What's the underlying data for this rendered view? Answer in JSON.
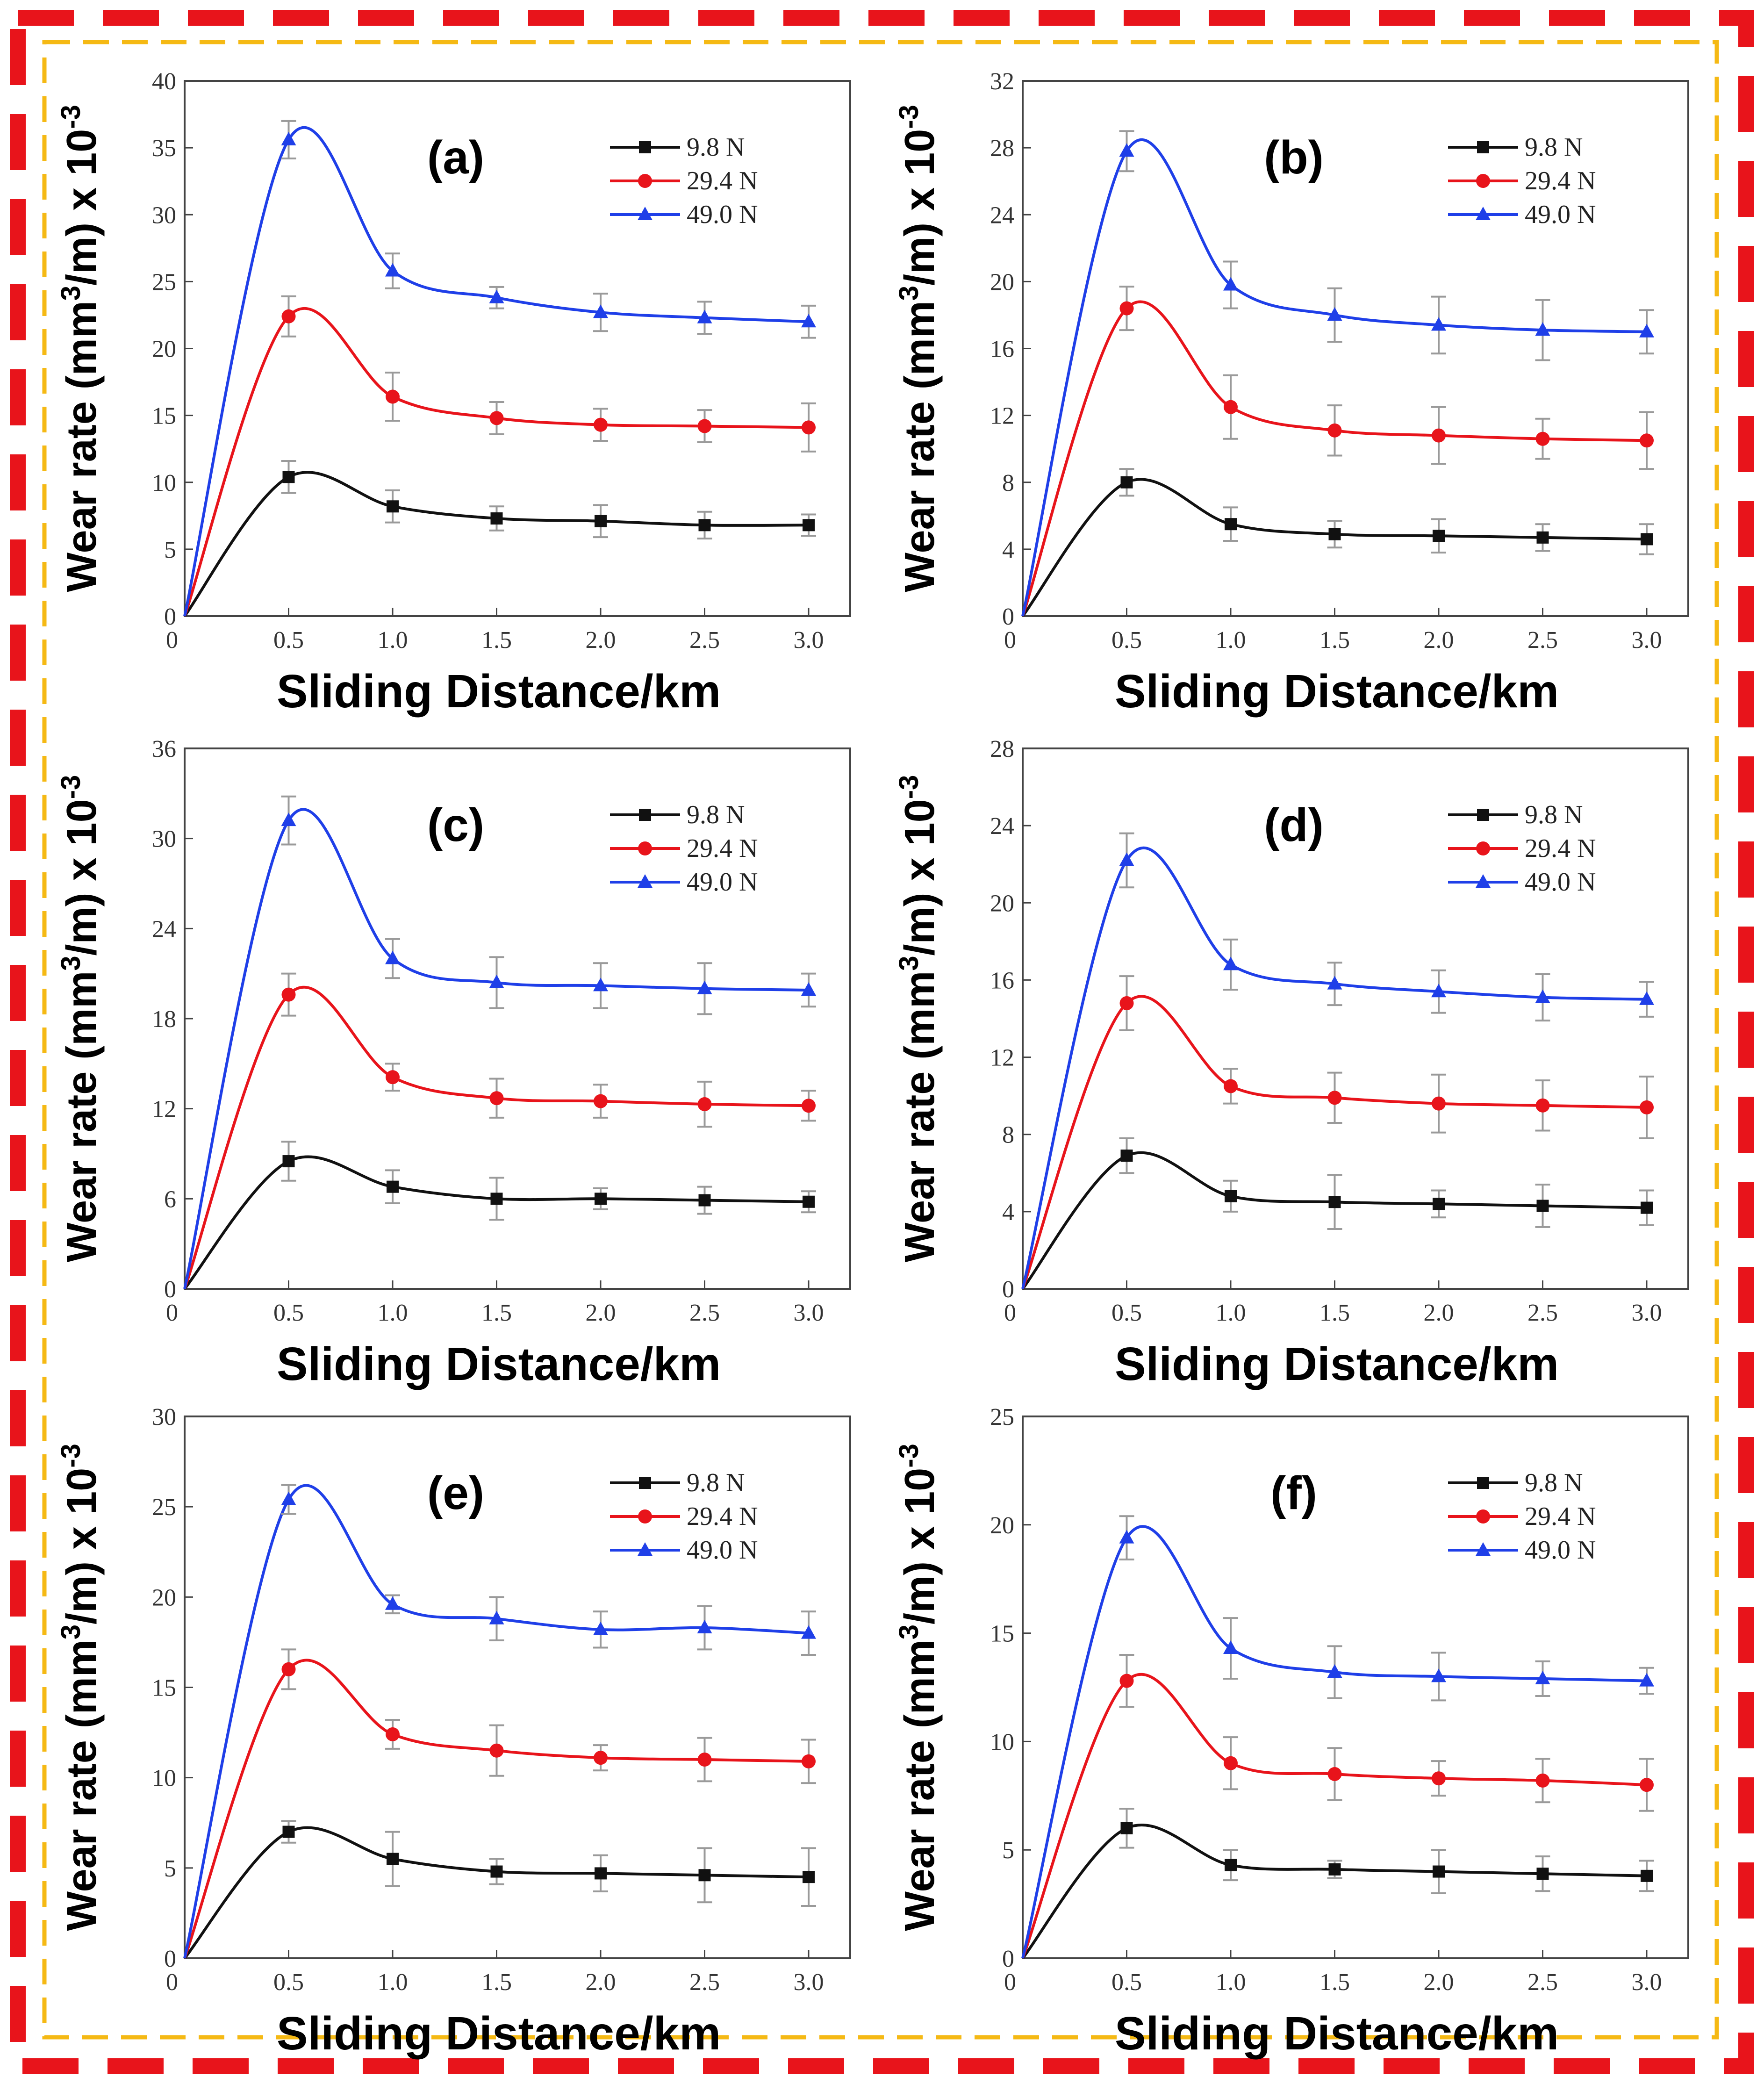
{
  "figure": {
    "colors": {
      "outer_border": "#e8141b",
      "inner_border": "#f5b914",
      "series": [
        "#111111",
        "#e8141b",
        "#1f3fe8"
      ]
    }
  },
  "chart_data": [
    {
      "type": "line",
      "panel": "(a)",
      "xlabel": "Sliding Distance/km",
      "ylabel": "Wear rate (mm3/m) x 10-3",
      "xlim": [
        0,
        3.2
      ],
      "ylim": [
        0,
        40
      ],
      "x_ticks": [
        0,
        0.5,
        1.0,
        1.5,
        2.0,
        2.5,
        3.0
      ],
      "x_tick_labels": [
        "0",
        "0.5",
        "1.0",
        "1.5",
        "2.0",
        "2.5",
        "3.0"
      ],
      "y_ticks": [
        0,
        5,
        10,
        15,
        20,
        25,
        30,
        35,
        40
      ],
      "y_tick_labels": [
        "0",
        "5",
        "10",
        "15",
        "20",
        "25",
        "30",
        "35",
        "40"
      ],
      "x": [
        0.5,
        1.0,
        1.5,
        2.0,
        2.5,
        3.0
      ],
      "series": [
        {
          "name": "9.8 N",
          "color": "#111111",
          "marker": "square",
          "values": [
            10.4,
            8.2,
            7.3,
            7.1,
            6.8,
            6.8
          ],
          "errors": [
            1.2,
            1.2,
            0.9,
            1.2,
            1.0,
            0.8
          ]
        },
        {
          "name": "29.4 N",
          "color": "#e8141b",
          "marker": "circle",
          "values": [
            22.4,
            16.4,
            14.8,
            14.3,
            14.2,
            14.1
          ],
          "errors": [
            1.5,
            1.8,
            1.2,
            1.2,
            1.2,
            1.8
          ]
        },
        {
          "name": "49.0 N",
          "color": "#1f3fe8",
          "marker": "triangle",
          "values": [
            35.6,
            25.8,
            23.8,
            22.7,
            22.3,
            22.0
          ],
          "errors": [
            1.4,
            1.3,
            0.8,
            1.4,
            1.2,
            1.2
          ]
        }
      ]
    },
    {
      "type": "line",
      "panel": "(b)",
      "xlabel": "Sliding Distance/km",
      "ylabel": "Wear rate (mm3/m) x 10-3",
      "xlim": [
        0,
        3.2
      ],
      "ylim": [
        0,
        32
      ],
      "x_ticks": [
        0,
        0.5,
        1.0,
        1.5,
        2.0,
        2.5,
        3.0
      ],
      "x_tick_labels": [
        "0",
        "0.5",
        "1.0",
        "1.5",
        "2.0",
        "2.5",
        "3.0"
      ],
      "y_ticks": [
        0,
        4,
        8,
        12,
        16,
        20,
        24,
        28,
        32
      ],
      "y_tick_labels": [
        "0",
        "4",
        "8",
        "12",
        "16",
        "20",
        "24",
        "28",
        "32"
      ],
      "x": [
        0.5,
        1.0,
        1.5,
        2.0,
        2.5,
        3.0
      ],
      "series": [
        {
          "name": "9.8 N",
          "color": "#111111",
          "marker": "square",
          "values": [
            8.0,
            5.5,
            4.9,
            4.8,
            4.7,
            4.6
          ],
          "errors": [
            0.8,
            1.0,
            0.8,
            1.0,
            0.8,
            0.9
          ]
        },
        {
          "name": "29.4 N",
          "color": "#e8141b",
          "marker": "circle",
          "values": [
            18.4,
            12.5,
            11.1,
            10.8,
            10.6,
            10.5
          ],
          "errors": [
            1.3,
            1.9,
            1.5,
            1.7,
            1.2,
            1.7
          ]
        },
        {
          "name": "49.0 N",
          "color": "#1f3fe8",
          "marker": "triangle",
          "values": [
            27.8,
            19.8,
            18.0,
            17.4,
            17.1,
            17.0
          ],
          "errors": [
            1.2,
            1.4,
            1.6,
            1.7,
            1.8,
            1.3
          ]
        }
      ]
    },
    {
      "type": "line",
      "panel": "(c)",
      "xlabel": "Sliding Distance/km",
      "ylabel": "Wear rate (mm3/m) x 10-3",
      "xlim": [
        0,
        3.2
      ],
      "ylim": [
        0,
        36
      ],
      "x_ticks": [
        0,
        0.5,
        1.0,
        1.5,
        2.0,
        2.5,
        3.0
      ],
      "x_tick_labels": [
        "0",
        "0.5",
        "1.0",
        "1.5",
        "2.0",
        "2.5",
        "3.0"
      ],
      "y_ticks": [
        0,
        6,
        12,
        18,
        24,
        30,
        36
      ],
      "y_tick_labels": [
        "0",
        "6",
        "12",
        "18",
        "24",
        "30",
        "36"
      ],
      "x": [
        0.5,
        1.0,
        1.5,
        2.0,
        2.5,
        3.0
      ],
      "series": [
        {
          "name": "9.8 N",
          "color": "#111111",
          "marker": "square",
          "values": [
            8.5,
            6.8,
            6.0,
            6.0,
            5.9,
            5.8
          ],
          "errors": [
            1.3,
            1.1,
            1.4,
            0.7,
            0.9,
            0.7
          ]
        },
        {
          "name": "29.4 N",
          "color": "#e8141b",
          "marker": "circle",
          "values": [
            19.6,
            14.1,
            12.7,
            12.5,
            12.3,
            12.2
          ],
          "errors": [
            1.4,
            0.9,
            1.3,
            1.1,
            1.5,
            1.0
          ]
        },
        {
          "name": "49.0 N",
          "color": "#1f3fe8",
          "marker": "triangle",
          "values": [
            31.2,
            22.0,
            20.4,
            20.2,
            20.0,
            19.9
          ],
          "errors": [
            1.6,
            1.3,
            1.7,
            1.5,
            1.7,
            1.1
          ]
        }
      ]
    },
    {
      "type": "line",
      "panel": "(d)",
      "xlabel": "Sliding Distance/km",
      "ylabel": "Wear rate (mm3/m) x 10-3",
      "xlim": [
        0,
        3.2
      ],
      "ylim": [
        0,
        28
      ],
      "x_ticks": [
        0,
        0.5,
        1.0,
        1.5,
        2.0,
        2.5,
        3.0
      ],
      "x_tick_labels": [
        "0",
        "0.5",
        "1.0",
        "1.5",
        "2.0",
        "2.5",
        "3.0"
      ],
      "y_ticks": [
        0,
        4,
        8,
        12,
        16,
        20,
        24,
        28
      ],
      "y_tick_labels": [
        "0",
        "4",
        "8",
        "12",
        "16",
        "20",
        "24",
        "28"
      ],
      "x": [
        0.5,
        1.0,
        1.5,
        2.0,
        2.5,
        3.0
      ],
      "series": [
        {
          "name": "9.8 N",
          "color": "#111111",
          "marker": "square",
          "values": [
            6.9,
            4.8,
            4.5,
            4.4,
            4.3,
            4.2
          ],
          "errors": [
            0.9,
            0.8,
            1.4,
            0.7,
            1.1,
            0.9
          ]
        },
        {
          "name": "29.4 N",
          "color": "#e8141b",
          "marker": "circle",
          "values": [
            14.8,
            10.5,
            9.9,
            9.6,
            9.5,
            9.4
          ],
          "errors": [
            1.4,
            0.9,
            1.3,
            1.5,
            1.3,
            1.6
          ]
        },
        {
          "name": "49.0 N",
          "color": "#1f3fe8",
          "marker": "triangle",
          "values": [
            22.2,
            16.8,
            15.8,
            15.4,
            15.1,
            15.0
          ],
          "errors": [
            1.4,
            1.3,
            1.1,
            1.1,
            1.2,
            0.9
          ]
        }
      ]
    },
    {
      "type": "line",
      "panel": "(e)",
      "xlabel": "Sliding Distance/km",
      "ylabel": "Wear rate (mm3/m) x 10-3",
      "xlim": [
        0,
        3.2
      ],
      "ylim": [
        0,
        30
      ],
      "x_ticks": [
        0,
        0.5,
        1.0,
        1.5,
        2.0,
        2.5,
        3.0
      ],
      "x_tick_labels": [
        "0",
        "0.5",
        "1.0",
        "1.5",
        "2.0",
        "2.5",
        "3.0"
      ],
      "y_ticks": [
        0,
        5,
        10,
        15,
        20,
        25,
        30
      ],
      "y_tick_labels": [
        "0",
        "5",
        "10",
        "15",
        "20",
        "25",
        "30"
      ],
      "x": [
        0.5,
        1.0,
        1.5,
        2.0,
        2.5,
        3.0
      ],
      "series": [
        {
          "name": "9.8 N",
          "color": "#111111",
          "marker": "square",
          "values": [
            7.0,
            5.5,
            4.8,
            4.7,
            4.6,
            4.5
          ],
          "errors": [
            0.6,
            1.5,
            0.7,
            1.0,
            1.5,
            1.6
          ]
        },
        {
          "name": "29.4 N",
          "color": "#e8141b",
          "marker": "circle",
          "values": [
            16.0,
            12.4,
            11.5,
            11.1,
            11.0,
            10.9
          ],
          "errors": [
            1.1,
            0.8,
            1.4,
            0.7,
            1.2,
            1.2
          ]
        },
        {
          "name": "49.0 N",
          "color": "#1f3fe8",
          "marker": "triangle",
          "values": [
            25.4,
            19.6,
            18.8,
            18.2,
            18.3,
            18.0
          ],
          "errors": [
            0.8,
            0.5,
            1.2,
            1.0,
            1.2,
            1.2
          ]
        }
      ]
    },
    {
      "type": "line",
      "panel": "(f)",
      "xlabel": "Sliding Distance/km",
      "ylabel": "Wear rate (mm3/m) x 10-3",
      "xlim": [
        0,
        3.2
      ],
      "ylim": [
        0,
        25
      ],
      "x_ticks": [
        0,
        0.5,
        1.0,
        1.5,
        2.0,
        2.5,
        3.0
      ],
      "x_tick_labels": [
        "0",
        "0.5",
        "1.0",
        "1.5",
        "2.0",
        "2.5",
        "3.0"
      ],
      "y_ticks": [
        0,
        5,
        10,
        15,
        20,
        25
      ],
      "y_tick_labels": [
        "0",
        "5",
        "10",
        "15",
        "20",
        "25"
      ],
      "x": [
        0.5,
        1.0,
        1.5,
        2.0,
        2.5,
        3.0
      ],
      "series": [
        {
          "name": "9.8 N",
          "color": "#111111",
          "marker": "square",
          "values": [
            6.0,
            4.3,
            4.1,
            4.0,
            3.9,
            3.8
          ],
          "errors": [
            0.9,
            0.7,
            0.4,
            1.0,
            0.8,
            0.7
          ]
        },
        {
          "name": "29.4 N",
          "color": "#e8141b",
          "marker": "circle",
          "values": [
            12.8,
            9.0,
            8.5,
            8.3,
            8.2,
            8.0
          ],
          "errors": [
            1.2,
            1.2,
            1.2,
            0.8,
            1.0,
            1.2
          ]
        },
        {
          "name": "49.0 N",
          "color": "#1f3fe8",
          "marker": "triangle",
          "values": [
            19.4,
            14.3,
            13.2,
            13.0,
            12.9,
            12.8
          ],
          "errors": [
            1.0,
            1.4,
            1.2,
            1.1,
            0.8,
            0.6
          ]
        }
      ]
    }
  ]
}
